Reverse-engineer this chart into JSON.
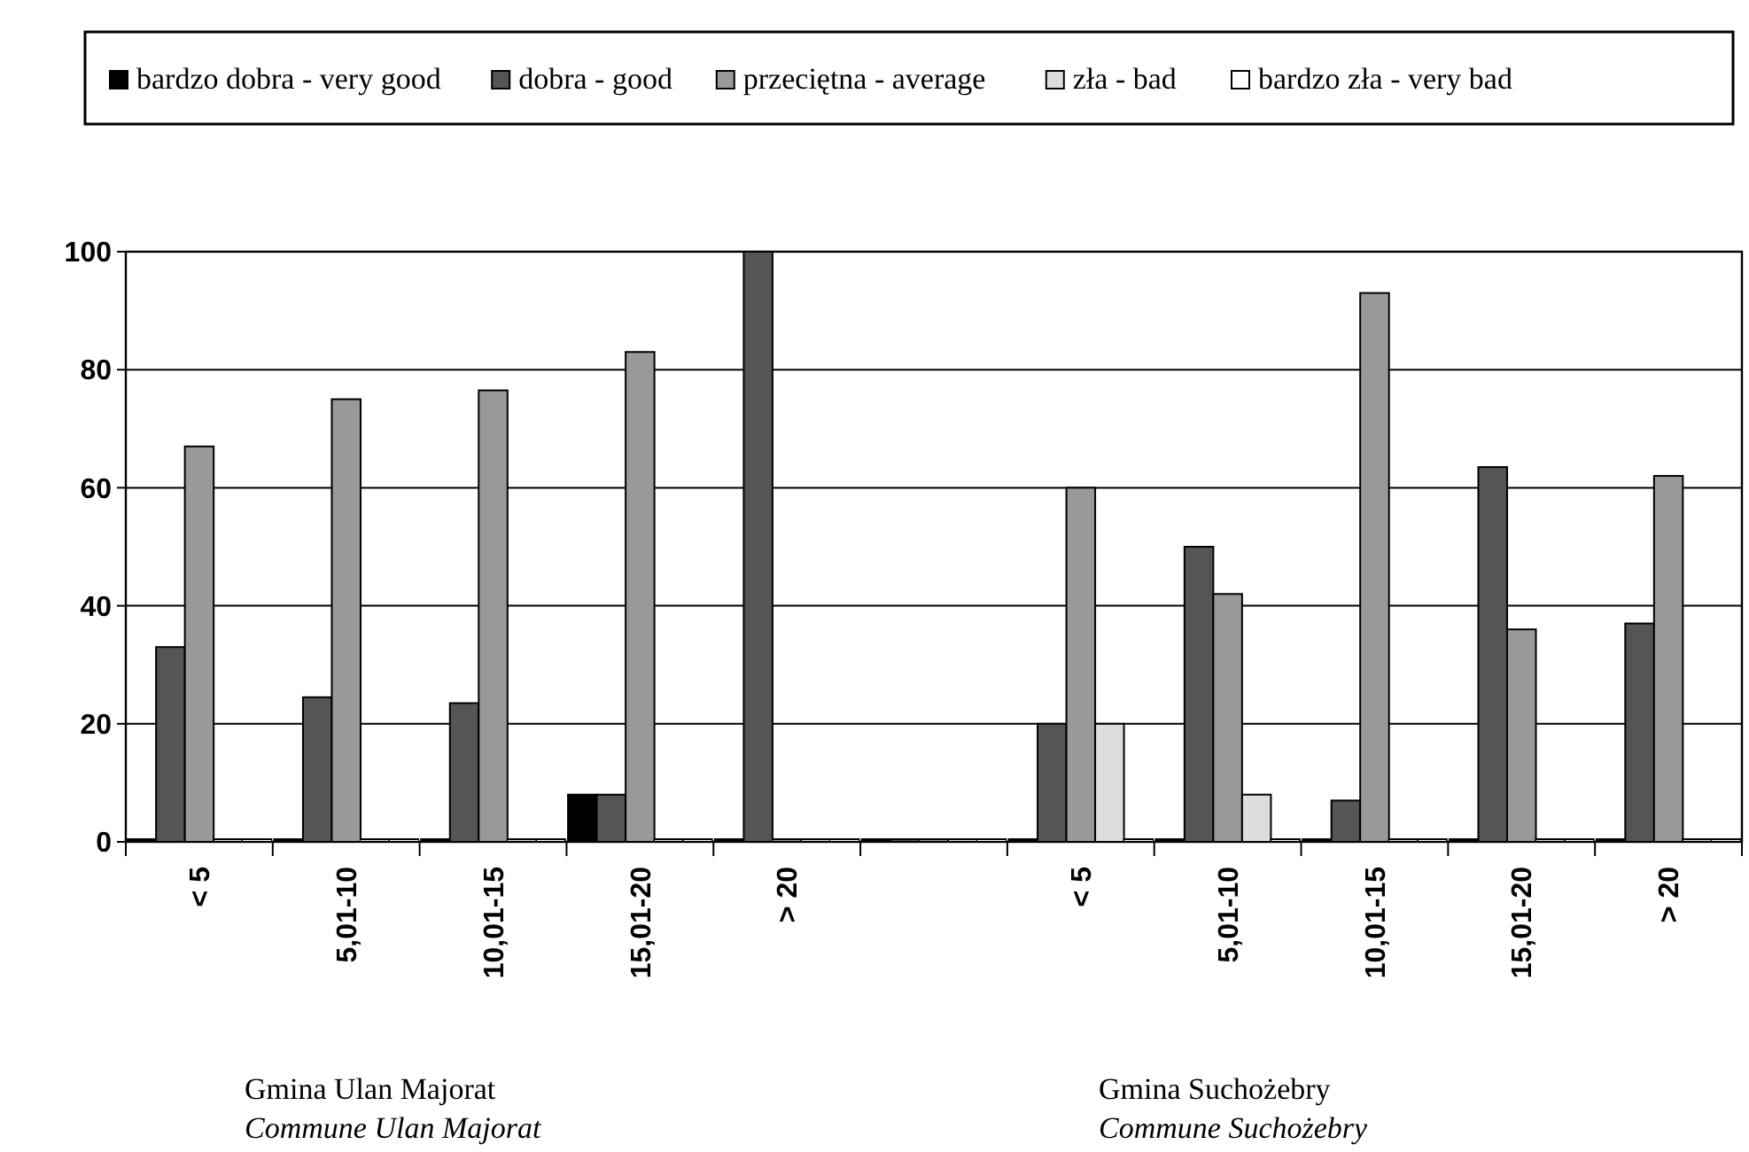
{
  "chart_data": {
    "type": "bar",
    "categories": [
      "< 5",
      "5,01-10",
      "10,01-15",
      "15,01-20",
      "> 20",
      null,
      "< 5",
      "5,01-10",
      "10,01-15",
      "15,01-20",
      "> 20"
    ],
    "series": [
      {
        "name": "bardzo dobra - very good",
        "color": "#000000",
        "values": [
          0,
          0,
          0,
          8,
          0,
          0,
          0,
          0,
          0,
          0,
          0
        ]
      },
      {
        "name": "dobra - good",
        "color": "#555555",
        "values": [
          33,
          24.5,
          23.5,
          8,
          100,
          0,
          20,
          50,
          7,
          63.5,
          37
        ]
      },
      {
        "name": "przeciętna - average",
        "color": "#999999",
        "values": [
          67,
          75,
          76.5,
          83,
          0,
          0,
          60,
          42,
          93,
          36,
          62
        ]
      },
      {
        "name": "zła - bad",
        "color": "#dddddd",
        "values": [
          0,
          0,
          0,
          0,
          0,
          0,
          20,
          8,
          0,
          0,
          0
        ]
      },
      {
        "name": "bardzo zła - very bad",
        "color": "#ffffff",
        "values": [
          0,
          0,
          0,
          0,
          0,
          0,
          0,
          0,
          0,
          0,
          0
        ]
      }
    ],
    "ylim": [
      0,
      100
    ],
    "yticks": [
      0,
      20,
      40,
      60,
      80,
      100
    ],
    "grid": "y",
    "legend": "top",
    "annotations": [
      "Gmina Ulan Majorat",
      "Commune Ulan Majorat",
      "Gmina Suchożebry",
      "Commune Suchożebry"
    ]
  }
}
